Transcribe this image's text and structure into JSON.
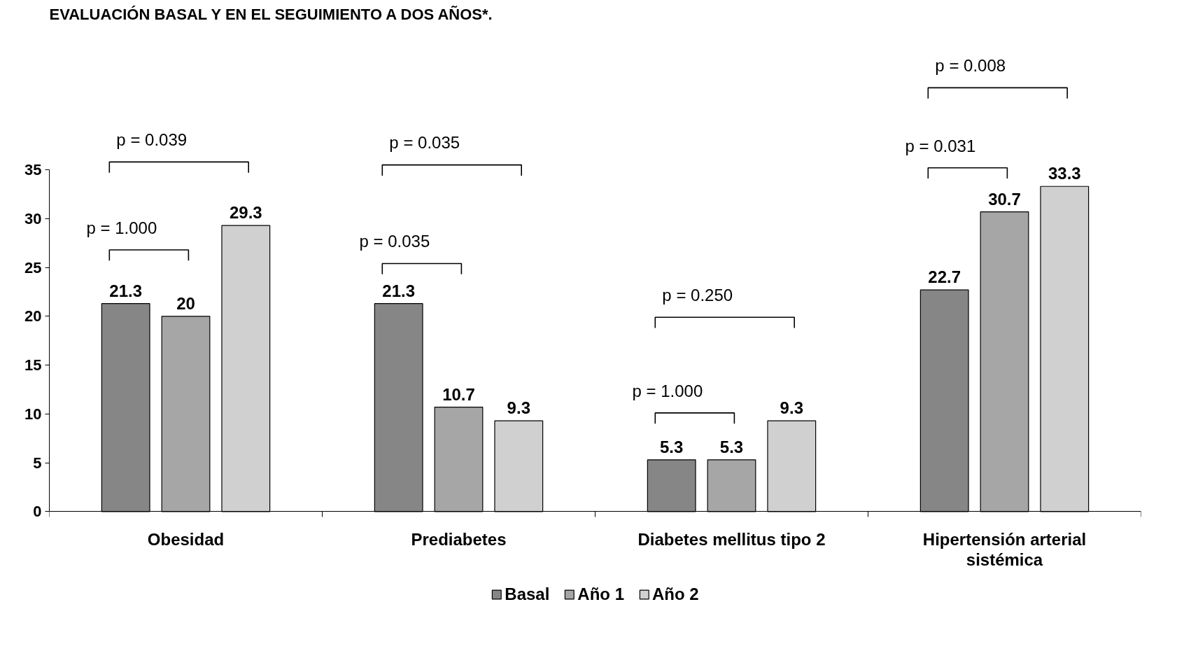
{
  "chart_data": {
    "type": "bar",
    "title": "EVALUACIÓN BASAL Y EN EL SEGUIMIENTO A DOS AÑOS*.",
    "categories": [
      "Obesidad",
      "Prediabetes",
      "Diabetes mellitus tipo 2",
      "Hipertensión arterial\nsistémica"
    ],
    "series": [
      {
        "name": "Basal",
        "color": "#868686",
        "values": [
          21.3,
          21.3,
          5.3,
          22.7
        ]
      },
      {
        "name": "Año 1",
        "color": "#a6a6a6",
        "values": [
          20,
          10.7,
          5.3,
          30.7
        ]
      },
      {
        "name": "Año 2",
        "color": "#d0d0d0",
        "values": [
          29.3,
          9.3,
          9.3,
          33.3
        ]
      }
    ],
    "ylim": [
      0,
      35
    ],
    "yticks": [
      0,
      5,
      10,
      15,
      20,
      25,
      30,
      35
    ],
    "data_labels": true,
    "grid": false,
    "legend": "bottom",
    "annotations": [
      "p = 0.039",
      "p = 1.000",
      "p = 0.035",
      "p = 0.035",
      "p = 0.250",
      "p = 1.000",
      "p = 0.008",
      "p = 0.031"
    ]
  }
}
